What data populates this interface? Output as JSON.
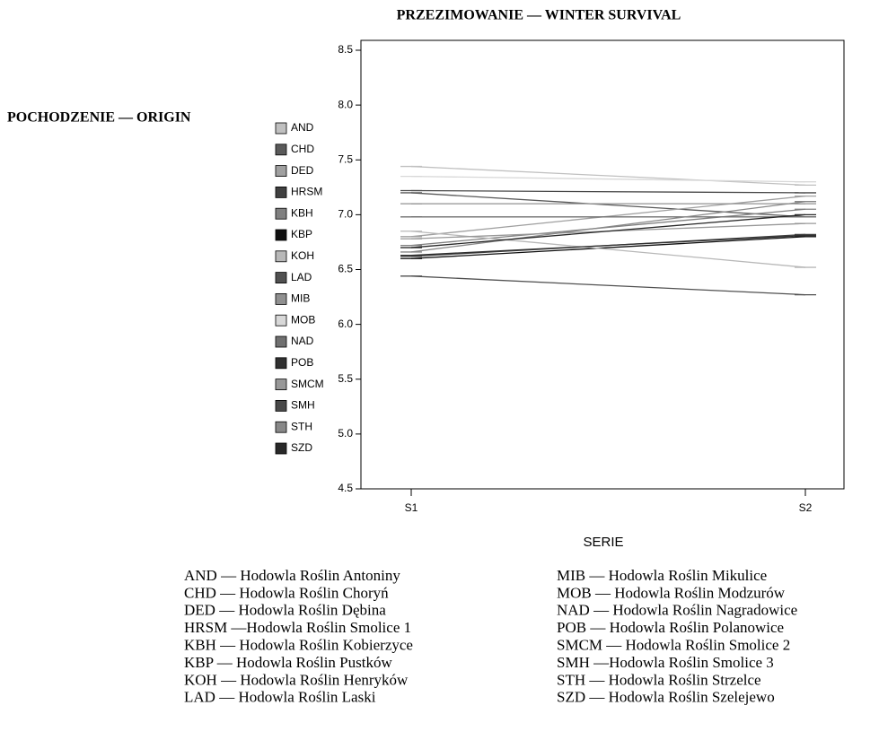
{
  "chart_data": {
    "type": "line",
    "title": "PRZEZIMOWANIE — WINTER SURVIVAL",
    "x_label": "SERIE",
    "legend_title": "POCHODZENIE — ORIGIN",
    "categories": [
      "S1",
      "S2"
    ],
    "ylim": [
      4.5,
      8.5
    ],
    "yticks": [
      {
        "value": 4.5,
        "label": "4.5"
      },
      {
        "value": 5,
        "label": "5.0"
      },
      {
        "value": 5.5,
        "label": "5.5"
      },
      {
        "value": 6,
        "label": "6.0"
      },
      {
        "value": 6.5,
        "label": "6.5"
      },
      {
        "value": 7,
        "label": "7.0"
      },
      {
        "value": 7.5,
        "label": "7.5"
      },
      {
        "value": 8,
        "label": "8.0"
      },
      {
        "value": 8.5,
        "label": "8.5"
      }
    ],
    "series": [
      {
        "name": "AND",
        "color": "#c0c0c0",
        "values": [
          7.44,
          7.27
        ]
      },
      {
        "name": "CHD",
        "color": "#5a5a5a",
        "values": [
          7.2,
          6.98
        ]
      },
      {
        "name": "DED",
        "color": "#a0a0a0",
        "values": [
          6.8,
          7.17
        ]
      },
      {
        "name": "HRSM",
        "color": "#404040",
        "values": [
          6.62,
          6.82
        ]
      },
      {
        "name": "KBH",
        "color": "#808080",
        "values": [
          6.72,
          7.05
        ]
      },
      {
        "name": "KBP",
        "color": "#101010",
        "values": [
          6.6,
          6.8
        ]
      },
      {
        "name": "KOH",
        "color": "#b8b8b8",
        "values": [
          6.85,
          6.52
        ]
      },
      {
        "name": "LAD",
        "color": "#505050",
        "values": [
          6.44,
          6.27
        ]
      },
      {
        "name": "MIB",
        "color": "#909090",
        "values": [
          7.1,
          7.1
        ]
      },
      {
        "name": "MOB",
        "color": "#d8d8d8",
        "values": [
          7.35,
          7.3
        ]
      },
      {
        "name": "NAD",
        "color": "#707070",
        "values": [
          6.98,
          6.98
        ]
      },
      {
        "name": "POB",
        "color": "#303030",
        "values": [
          6.63,
          6.81
        ]
      },
      {
        "name": "SMCM",
        "color": "#989898",
        "values": [
          6.78,
          6.92
        ]
      },
      {
        "name": "SMH",
        "color": "#484848",
        "values": [
          7.22,
          7.2
        ]
      },
      {
        "name": "STH",
        "color": "#888888",
        "values": [
          6.66,
          7.12
        ]
      },
      {
        "name": "SZD",
        "color": "#282828",
        "values": [
          6.7,
          7.0
        ]
      }
    ],
    "annotations": [
      "AND — Hodowla Roślin Antoniny",
      "CHD — Hodowla Roślin Choryń",
      "DED — Hodowla Roślin Dębina",
      "HRSM —Hodowla Roślin Smolice 1",
      "KBH — Hodowla Roślin Kobierzyce",
      "KBP — Hodowla Roślin Pustków",
      "KOH — Hodowla Roślin Henryków",
      "LAD — Hodowla Roślin Laski",
      "MIB — Hodowla Roślin Mikulice",
      "MOB — Hodowla Roślin Modzurów",
      "NAD — Hodowla Roślin Nagradowice",
      "POB — Hodowla Roślin Polanowice",
      "SMCM — Hodowla Roślin Smolice 2",
      "SMH —Hodowla Roślin Smolice 3",
      "STH — Hodowla Roślin Strzelce",
      "SZD — Hodowla Roślin Szelejewo"
    ]
  }
}
